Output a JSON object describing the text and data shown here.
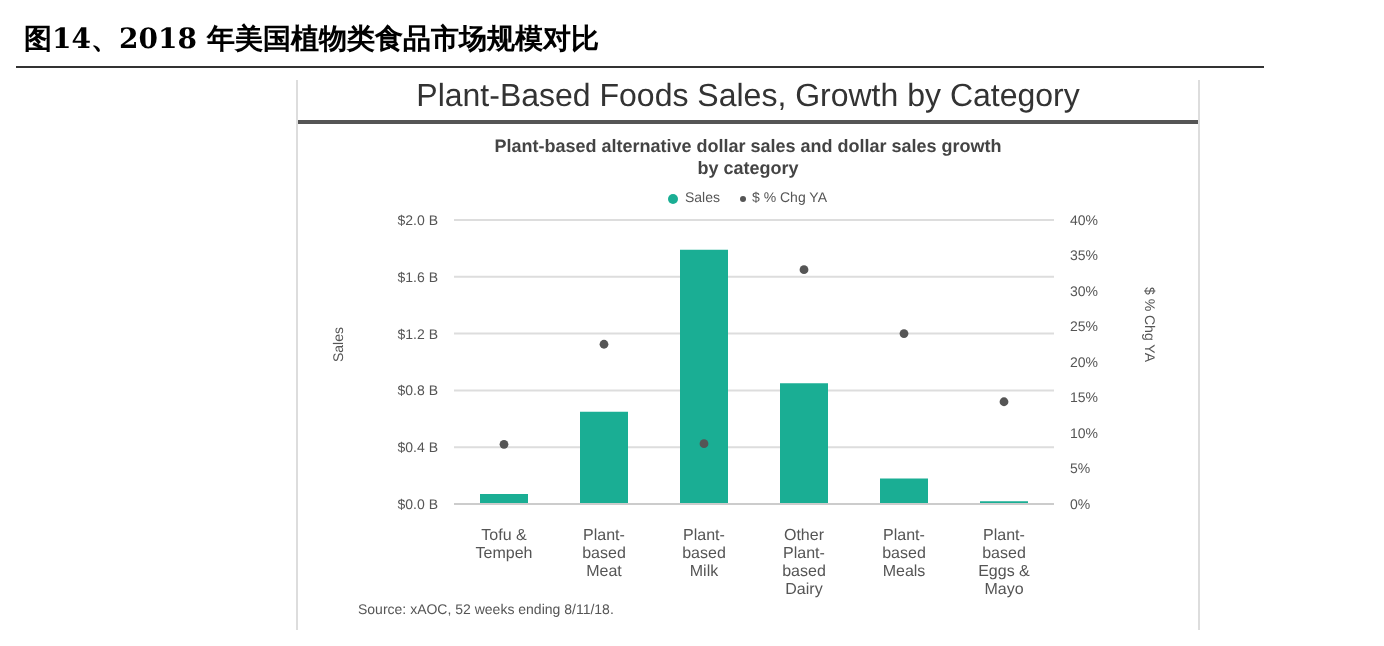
{
  "chart_data": {
    "type": "bar",
    "title": "图14、2018 年美国植物类食品市场规模对比",
    "subtitle": "Plant-Based Foods Sales, Growth by Category",
    "annotations": [
      "Plant-based alternative dollar sales and dollar sales growth by category",
      "Source: xAOC, 52 weeks ending 8/11/18."
    ],
    "categories": [
      "Tofu &\nTempeh",
      "Plant-\nbased\nMeat",
      "Plant-\nbased\nMilk",
      "Other\nPlant-\nbased\nDairy",
      "Plant-\nbased\nMeals",
      "Plant-\nbased\nEggs &\nMayo"
    ],
    "series": [
      {
        "name": "Sales",
        "type": "bar",
        "color": "#1aae94",
        "values": [
          0.07,
          0.65,
          1.79,
          0.85,
          0.18,
          0.02
        ]
      },
      {
        "name": "$ % Chg YA",
        "type": "scatter",
        "axis": "y2",
        "color": "#555555",
        "values": [
          8.4,
          22.5,
          8.5,
          33,
          24,
          14.4
        ]
      }
    ],
    "ylabel": "Sales",
    "y2label": "$ % Chg YA",
    "ylim": [
      0,
      2.0
    ],
    "yticks": [
      {
        "value": 0,
        "label": "$0.0 B"
      },
      {
        "value": 0.4,
        "label": "$0.4 B"
      },
      {
        "value": 0.8,
        "label": "$0.8 B"
      },
      {
        "value": 1.2,
        "label": "$1.2 B"
      },
      {
        "value": 1.6,
        "label": "$1.6 B"
      },
      {
        "value": 2.0,
        "label": "$2.0 B"
      }
    ],
    "y2lim": [
      0,
      40
    ],
    "y2ticks": [
      {
        "value": 0,
        "label": "0%"
      },
      {
        "value": 5,
        "label": "5%"
      },
      {
        "value": 10,
        "label": "10%"
      },
      {
        "value": 15,
        "label": "15%"
      },
      {
        "value": 20,
        "label": "20%"
      },
      {
        "value": 25,
        "label": "25%"
      },
      {
        "value": 30,
        "label": "30%"
      },
      {
        "value": 35,
        "label": "35%"
      },
      {
        "value": 40,
        "label": "40%"
      }
    ],
    "grid": "y",
    "legend": "top",
    "marker": "circle"
  }
}
